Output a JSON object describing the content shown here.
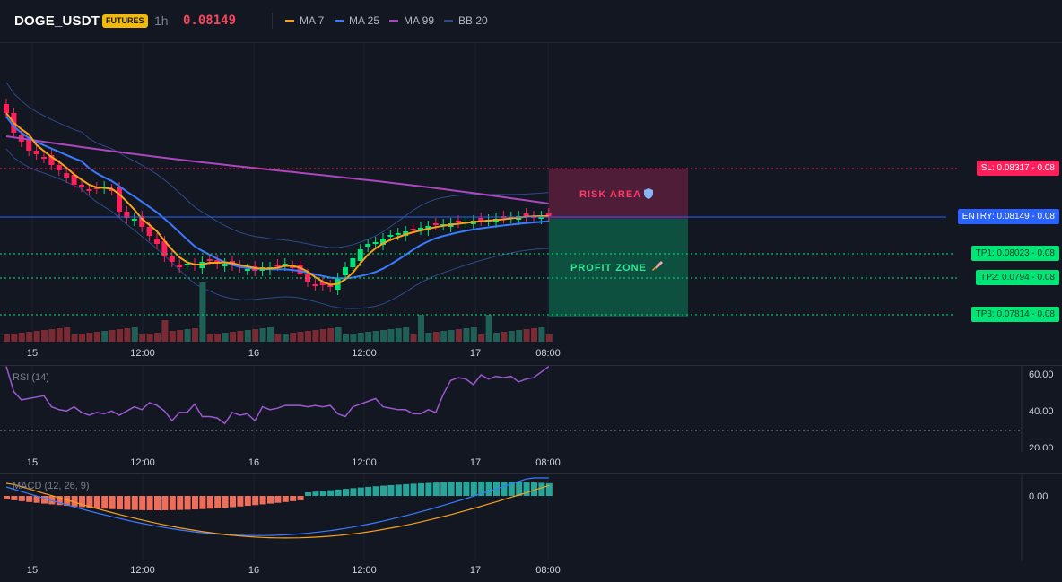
{
  "header": {
    "symbol": "DOGE_USDT",
    "badge": "FUTURES",
    "interval": "1h",
    "last_price": "0.08149",
    "legend": [
      {
        "label": "MA 7",
        "color": "#f7a21b"
      },
      {
        "label": "MA 25",
        "color": "#3a7bfd"
      },
      {
        "label": "MA 99",
        "color": "#ab47bc"
      },
      {
        "label": "BB 20",
        "color": "#2d4a8a"
      }
    ]
  },
  "zones": {
    "risk": "RISK AREA",
    "risk_icon": "shield-icon",
    "profit": "PROFIT ZONE",
    "profit_icon": "rocket-icon"
  },
  "levels": {
    "sl": "SL: 0.08317 - 0.08",
    "entry": "ENTRY: 0.08149 - 0.08",
    "tp1": "TP1: 0.08023 - 0.08",
    "tp2": "TP2: 0.0794 - 0.08",
    "tp3": "TP3: 0.07814 - 0.08"
  },
  "time_axis": [
    "15",
    "12:00",
    "16",
    "12:00",
    "17",
    "08:00"
  ],
  "rsi": {
    "title": "RSI (14)",
    "y_ticks": [
      "60.00",
      "40.00",
      "20.00"
    ],
    "values": [
      66,
      48,
      42,
      43,
      44,
      45,
      37,
      35,
      34,
      37,
      33,
      31,
      33,
      32,
      34,
      31,
      34,
      37,
      35,
      40,
      38,
      34,
      27,
      33,
      33,
      39,
      30,
      30,
      29,
      25,
      33,
      31,
      32,
      27,
      37,
      35,
      36,
      38,
      38,
      38,
      37,
      38,
      37,
      38,
      32,
      30,
      37,
      39,
      41,
      43,
      37,
      36,
      35,
      35,
      32,
      32,
      35,
      33,
      46,
      56,
      58,
      57,
      53,
      60,
      57,
      59,
      58,
      59,
      55,
      57,
      58,
      62,
      66
    ]
  },
  "macd": {
    "title": "MACD (12, 26, 9)",
    "y_tick": "0.00"
  },
  "colors": {
    "bull": "#26a69a",
    "bear": "#ef5350",
    "candle_up": "#00e676",
    "candle_down": "#ff1f5a",
    "sl": "#ff1f5a",
    "entry": "#2962ff",
    "tp": "#00e676"
  }
}
